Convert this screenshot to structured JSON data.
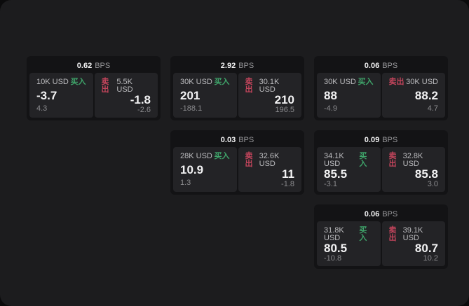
{
  "colors": {
    "outer": "#0b0b0c",
    "panel": "#1c1c1e",
    "card": "#131315",
    "tile": "#232326",
    "value_text": "#f2f2f3",
    "muted": "#8b8b8e",
    "amount_text": "#bcbcbf",
    "unit_text": "#98989b",
    "green": "#3fa46a",
    "red": "#c4455c"
  },
  "columns": [
    {
      "cards": [
        {
          "bps": "0.62",
          "unit": "BPS",
          "buy": {
            "amount": "10K USD",
            "label": "买入",
            "value": "-3.7",
            "delta": "4.3"
          },
          "sell": {
            "label": "卖出",
            "amount": "5.5K USD",
            "value": "-1.8",
            "delta": "-2.6"
          }
        }
      ]
    },
    {
      "cards": [
        {
          "bps": "2.92",
          "unit": "BPS",
          "buy": {
            "amount": "30K USD",
            "label": "买入",
            "value": "201",
            "delta": "-188.1"
          },
          "sell": {
            "label": "卖出",
            "amount": "30.1K USD",
            "value": "210",
            "delta": "196.5"
          }
        },
        {
          "bps": "0.03",
          "unit": "BPS",
          "buy": {
            "amount": "28K USD",
            "label": "买入",
            "value": "10.9",
            "delta": "1.3"
          },
          "sell": {
            "label": "卖出",
            "amount": "32.6K USD",
            "value": "11",
            "delta": "-1.8"
          }
        }
      ]
    },
    {
      "cards": [
        {
          "bps": "0.06",
          "unit": "BPS",
          "buy": {
            "amount": "30K USD",
            "label": "买入",
            "value": "88",
            "delta": "-4.9"
          },
          "sell": {
            "label": "卖出",
            "amount": "30K USD",
            "value": "88.2",
            "delta": "4.7"
          }
        },
        {
          "bps": "0.09",
          "unit": "BPS",
          "buy": {
            "amount": "34.1K USD",
            "label": "买入",
            "value": "85.5",
            "delta": "-3.1"
          },
          "sell": {
            "label": "卖出",
            "amount": "32.8K USD",
            "value": "85.8",
            "delta": "3.0"
          }
        },
        {
          "bps": "0.06",
          "unit": "BPS",
          "buy": {
            "amount": "31.8K USD",
            "label": "买入",
            "value": "80.5",
            "delta": "-10.8"
          },
          "sell": {
            "label": "卖出",
            "amount": "39.1K USD",
            "value": "80.7",
            "delta": "10.2"
          }
        }
      ]
    }
  ]
}
